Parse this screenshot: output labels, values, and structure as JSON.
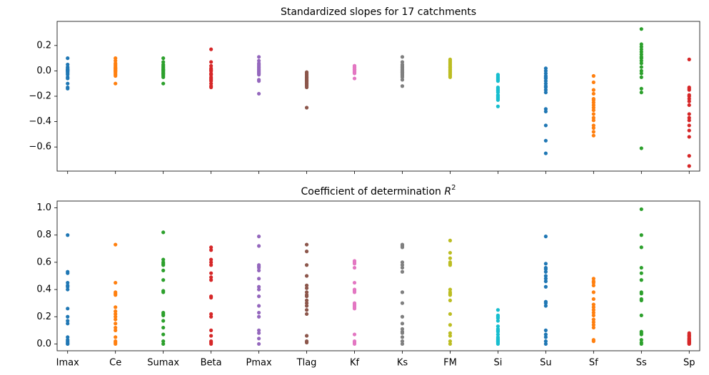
{
  "chart_data": [
    {
      "type": "strip",
      "title": "Standardized slopes for 17 catchments",
      "ylim": [
        -0.79,
        0.39
      ],
      "yticks": [
        {
          "value": -0.6,
          "label": "−0.6"
        },
        {
          "value": -0.4,
          "label": "−0.4"
        },
        {
          "value": -0.2,
          "label": "−0.2"
        },
        {
          "value": 0.0,
          "label": "0.0"
        },
        0.2
      ],
      "colors": [
        "#1f77b4",
        "#ff7f0e",
        "#2ca02c",
        "#d62728",
        "#9467bd",
        "#8c564b",
        "#e377c2",
        "#7f7f7f",
        "#bcbd22",
        "#17becf",
        "#1f77b4",
        "#ff7f0e",
        "#2ca02c",
        "#d62728"
      ],
      "values": [
        [
          0.1,
          0.05,
          0.03,
          0.02,
          0.01,
          0,
          0,
          -0.01,
          -0.02,
          -0.03,
          -0.05,
          -0.06,
          -0.1,
          -0.13,
          -0.14,
          0.0,
          0.01
        ],
        [
          0.1,
          0.08,
          0.06,
          0.05,
          0.04,
          0.03,
          0.02,
          0.01,
          0,
          0,
          -0.01,
          -0.02,
          -0.03,
          -0.04,
          -0.1,
          0.02,
          0.0
        ],
        [
          0.1,
          0.07,
          0.05,
          0.04,
          0.03,
          0.02,
          0.01,
          0,
          0,
          -0.01,
          -0.02,
          -0.03,
          -0.04,
          -0.05,
          -0.1,
          0.01,
          -0.02
        ],
        [
          0.17,
          0.07,
          0.04,
          0.02,
          0.01,
          0,
          -0.02,
          -0.03,
          -0.05,
          -0.07,
          -0.08,
          -0.1,
          -0.12,
          -0.13,
          -0.03,
          0.0,
          -0.06
        ],
        [
          0.11,
          0.08,
          0.06,
          0.05,
          0.03,
          0.02,
          0.01,
          0,
          -0.01,
          -0.02,
          -0.03,
          -0.07,
          -0.08,
          -0.18,
          0.04,
          0.0,
          -0.02
        ],
        [
          -0.01,
          -0.02,
          -0.03,
          -0.04,
          -0.05,
          -0.06,
          -0.07,
          -0.08,
          -0.09,
          -0.1,
          -0.11,
          -0.12,
          -0.13,
          -0.29,
          -0.05,
          -0.08,
          -0.1
        ],
        [
          0.04,
          0.03,
          0.02,
          0.01,
          0,
          -0.01,
          -0.02,
          -0.06,
          0.03,
          0.01,
          0.0,
          0.02,
          -0.01,
          0.04,
          0.0,
          0.01,
          0.02
        ],
        [
          0.11,
          0.07,
          0.05,
          0.03,
          0.01,
          0,
          -0.01,
          -0.02,
          -0.03,
          -0.05,
          -0.07,
          -0.12,
          0.02,
          -0.01,
          0.0,
          0.04,
          -0.04
        ],
        [
          0.09,
          0.07,
          0.05,
          0.04,
          0.03,
          0.02,
          0.01,
          0,
          -0.01,
          -0.02,
          -0.04,
          -0.05,
          0.06,
          0.08,
          0.0,
          0.03,
          -0.03
        ],
        [
          -0.03,
          -0.05,
          -0.07,
          -0.08,
          -0.13,
          -0.15,
          -0.16,
          -0.19,
          -0.21,
          -0.22,
          -0.28,
          -0.06,
          -0.14,
          -0.2,
          -0.04,
          -0.17,
          -0.23
        ],
        [
          0.02,
          0,
          -0.02,
          -0.04,
          -0.06,
          -0.08,
          -0.1,
          -0.12,
          -0.15,
          -0.17,
          -0.3,
          -0.32,
          -0.43,
          -0.55,
          -0.65,
          -0.05,
          -0.13
        ],
        [
          -0.04,
          -0.09,
          -0.15,
          -0.18,
          -0.22,
          -0.25,
          -0.29,
          -0.31,
          -0.34,
          -0.37,
          -0.39,
          -0.43,
          -0.45,
          -0.48,
          -0.51,
          -0.27,
          -0.23
        ],
        [
          0.33,
          0.21,
          0.19,
          0.15,
          0.13,
          0.11,
          0.08,
          0.06,
          0.03,
          0,
          -0.02,
          -0.05,
          -0.14,
          -0.17,
          -0.61,
          0.17,
          0.1
        ],
        [
          0.09,
          -0.13,
          -0.15,
          -0.19,
          -0.22,
          -0.24,
          -0.34,
          -0.37,
          -0.43,
          -0.47,
          -0.52,
          -0.67,
          -0.75,
          -0.2,
          -0.27,
          -0.39,
          -0.14
        ]
      ]
    },
    {
      "type": "strip",
      "title": "Coefficient of determination",
      "title_symbol": "R",
      "title_superscript": "2",
      "categories": [
        "Imax",
        "Ce",
        "Sumax",
        "Beta",
        "Pmax",
        "Tlag",
        "Kf",
        "Ks",
        "FM",
        "Si",
        "Su",
        "Sf",
        "Ss",
        "Sp"
      ],
      "ylim": [
        -0.05,
        1.05
      ],
      "yticks": [
        {
          "value": 0.0,
          "label": "0.0"
        },
        0.2,
        0.4,
        0.6,
        0.8,
        {
          "value": 1.0,
          "label": "1.0"
        }
      ],
      "colors": [
        "#1f77b4",
        "#ff7f0e",
        "#2ca02c",
        "#d62728",
        "#9467bd",
        "#8c564b",
        "#e377c2",
        "#7f7f7f",
        "#bcbd22",
        "#17becf",
        "#1f77b4",
        "#ff7f0e",
        "#2ca02c",
        "#d62728"
      ],
      "values": [
        [
          0.8,
          0.53,
          0.45,
          0.43,
          0.4,
          0.26,
          0.2,
          0.15,
          0.05,
          0.02,
          0.01,
          0,
          0.52,
          0.42,
          0.17,
          0.03,
          0.0
        ],
        [
          0.73,
          0.45,
          0.38,
          0.36,
          0.27,
          0.24,
          0.22,
          0.2,
          0.18,
          0.15,
          0.12,
          0.05,
          0.02,
          0,
          0.37,
          0.1,
          0.01
        ],
        [
          0.82,
          0.62,
          0.6,
          0.58,
          0.54,
          0.47,
          0.39,
          0.38,
          0.23,
          0.21,
          0.17,
          0.12,
          0.07,
          0.02,
          0,
          0.59,
          0.22
        ],
        [
          0.71,
          0.69,
          0.62,
          0.6,
          0.52,
          0.49,
          0.35,
          0.34,
          0.22,
          0.2,
          0.1,
          0.06,
          0.02,
          0.01,
          0,
          0.58,
          0.47
        ],
        [
          0.79,
          0.72,
          0.58,
          0.56,
          0.54,
          0.48,
          0.42,
          0.4,
          0.35,
          0.28,
          0.23,
          0.2,
          0.1,
          0.08,
          0.04,
          0,
          0.57
        ],
        [
          0.73,
          0.68,
          0.58,
          0.5,
          0.43,
          0.41,
          0.38,
          0.35,
          0.32,
          0.3,
          0.28,
          0.25,
          0.22,
          0.06,
          0.02,
          0.01,
          0.36
        ],
        [
          0.61,
          0.59,
          0.56,
          0.45,
          0.4,
          0.38,
          0.3,
          0.28,
          0.27,
          0.07,
          0.02,
          0,
          0.39,
          0.29,
          0.01,
          0.6,
          0.26
        ],
        [
          0.73,
          0.71,
          0.6,
          0.56,
          0.53,
          0.38,
          0.3,
          0.2,
          0.15,
          0.11,
          0.09,
          0.08,
          0.05,
          0.02,
          0,
          0.72,
          0.58
        ],
        [
          0.76,
          0.67,
          0.63,
          0.6,
          0.58,
          0.4,
          0.38,
          0.37,
          0.32,
          0.22,
          0.14,
          0.08,
          0.06,
          0.02,
          0,
          0.59,
          0.36
        ],
        [
          0.25,
          0.21,
          0.19,
          0.17,
          0.13,
          0.1,
          0.09,
          0.07,
          0.05,
          0.03,
          0.02,
          0.01,
          0,
          0.2,
          0.11,
          0.04,
          0.02
        ],
        [
          0.79,
          0.59,
          0.56,
          0.53,
          0.5,
          0.46,
          0.42,
          0.31,
          0.3,
          0.28,
          0.1,
          0.07,
          0.05,
          0.02,
          0,
          0.55,
          0.48
        ],
        [
          0.48,
          0.46,
          0.43,
          0.38,
          0.33,
          0.29,
          0.25,
          0.23,
          0.21,
          0.18,
          0.16,
          0.14,
          0.12,
          0.03,
          0.02,
          0.45,
          0.27
        ],
        [
          0.99,
          0.8,
          0.71,
          0.56,
          0.52,
          0.47,
          0.37,
          0.33,
          0.32,
          0.21,
          0.09,
          0.07,
          0.03,
          0.01,
          0,
          0.38,
          0.08
        ],
        [
          0.08,
          0.07,
          0.06,
          0.05,
          0.04,
          0.04,
          0.03,
          0.03,
          0.02,
          0.02,
          0.01,
          0.01,
          0,
          0,
          0.06,
          0.02,
          0.01
        ]
      ]
    }
  ]
}
